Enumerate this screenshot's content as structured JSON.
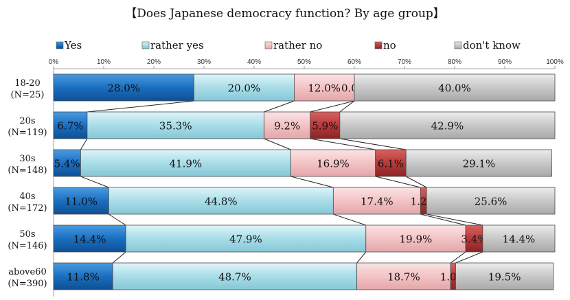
{
  "chart_data": {
    "type": "bar",
    "orientation": "horizontal",
    "stacked": "percent",
    "title": "【Does Japanese democracy function? By age group】",
    "categories": [
      {
        "label": "18-20",
        "n": "(N=25)"
      },
      {
        "label": "20s",
        "n": "(N=119)"
      },
      {
        "label": "30s",
        "n": "(N=148)"
      },
      {
        "label": "40s",
        "n": "(N=172)"
      },
      {
        "label": "50s",
        "n": "(N=146)"
      },
      {
        "label": "above60",
        "n": "(N=390)"
      }
    ],
    "series": [
      {
        "name": "Yes",
        "color": "#1a6fc0",
        "values": [
          28.0,
          6.7,
          5.4,
          11.0,
          14.4,
          11.8
        ],
        "labels": [
          "28.0%",
          "6.7%",
          "5.4%",
          "11.0%",
          "14.4%",
          "11.8%"
        ]
      },
      {
        "name": "rather yes",
        "color": "#a8dde8",
        "values": [
          20.0,
          35.3,
          41.9,
          44.8,
          47.9,
          48.7
        ],
        "labels": [
          "20.0%",
          "35.3%",
          "41.9%",
          "44.8%",
          "47.9%",
          "48.7%"
        ]
      },
      {
        "name": "rather no",
        "color": "#f3c3c5",
        "values": [
          12.0,
          9.2,
          16.9,
          17.4,
          19.9,
          18.7
        ],
        "labels": [
          "12.0%",
          "9.2%",
          "16.9%",
          "17.4%",
          "19.9%",
          "18.7%"
        ]
      },
      {
        "name": "no",
        "color": "#b83a3a",
        "values": [
          0.0,
          5.9,
          6.1,
          1.2,
          3.4,
          1.0
        ],
        "labels": [
          "0.0%",
          "5.9%",
          "6.1%",
          "1.2%",
          "3.4%",
          "1.0%"
        ]
      },
      {
        "name": "don't know",
        "color": "#c8c8c8",
        "values": [
          40.0,
          42.9,
          29.1,
          25.6,
          14.4,
          19.5
        ],
        "labels": [
          "40.0%",
          "42.9%",
          "29.1%",
          "25.6%",
          "14.4%",
          "19.5%"
        ]
      }
    ],
    "xlim": [
      0,
      100
    ],
    "xticks": [
      "0%",
      "10%",
      "20%",
      "30%",
      "40%",
      "50%",
      "60%",
      "70%",
      "80%",
      "90%",
      "100%"
    ],
    "legend_position": "top",
    "series_lines": true
  }
}
